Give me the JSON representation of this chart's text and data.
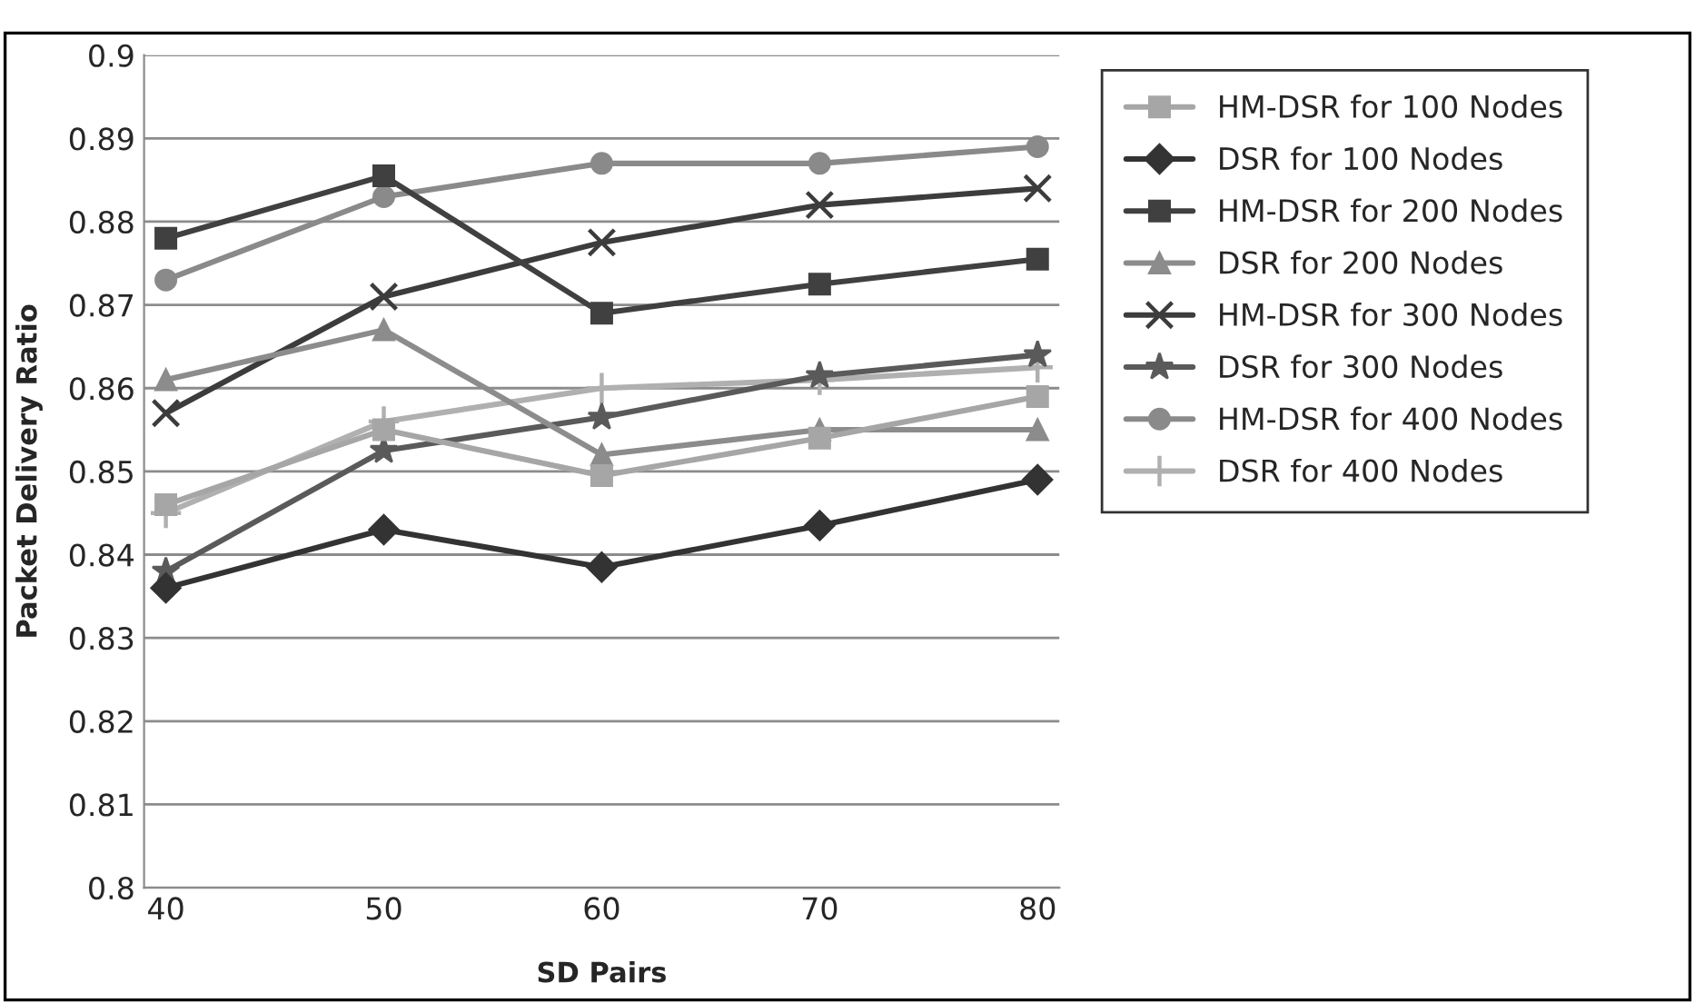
{
  "chart_data": {
    "type": "line",
    "xlabel": "SD Pairs",
    "ylabel": "Packet Delivery Ratio",
    "categories": [
      "40",
      "50",
      "60",
      "70",
      "80"
    ],
    "ylim": [
      0.8,
      0.9
    ],
    "yticks": [
      {
        "value": 0.8,
        "label": "0.8"
      },
      {
        "value": 0.81,
        "label": "0.81"
      },
      {
        "value": 0.82,
        "label": "0.82"
      },
      {
        "value": 0.83,
        "label": "0.83"
      },
      {
        "value": 0.84,
        "label": "0.84"
      },
      {
        "value": 0.85,
        "label": "0.85"
      },
      {
        "value": 0.86,
        "label": "0.86"
      },
      {
        "value": 0.87,
        "label": "0.87"
      },
      {
        "value": 0.88,
        "label": "0.88"
      },
      {
        "value": 0.89,
        "label": "0.89"
      },
      {
        "value": 0.9,
        "label": "0.9"
      }
    ],
    "grid": "y",
    "legend": "right",
    "line_style": "solid",
    "series": [
      {
        "name": "HM-DSR for 100 Nodes",
        "color": "#a6a6a6",
        "marker": "square",
        "values": [
          0.846,
          0.855,
          0.8495,
          0.854,
          0.859
        ]
      },
      {
        "name": "DSR for 100 Nodes",
        "color": "#333333",
        "marker": "diamond",
        "values": [
          0.836,
          0.843,
          0.8385,
          0.8435,
          0.849
        ]
      },
      {
        "name": "HM-DSR for 200 Nodes",
        "color": "#404040",
        "marker": "square",
        "values": [
          0.878,
          0.8855,
          0.869,
          0.8725,
          0.8755
        ]
      },
      {
        "name": "DSR for 200 Nodes",
        "color": "#8c8c8c",
        "marker": "triangle",
        "values": [
          0.861,
          0.867,
          0.852,
          0.855,
          0.855
        ]
      },
      {
        "name": "HM-DSR for 300 Nodes",
        "color": "#3c3c3c",
        "marker": "cross",
        "values": [
          0.857,
          0.871,
          0.8775,
          0.882,
          0.884
        ]
      },
      {
        "name": "DSR for 300 Nodes",
        "color": "#5a5a5a",
        "marker": "star",
        "values": [
          0.838,
          0.8525,
          0.8565,
          0.8615,
          0.864
        ]
      },
      {
        "name": "HM-DSR for 400 Nodes",
        "color": "#8a8a8a",
        "marker": "circle",
        "values": [
          0.873,
          0.883,
          0.887,
          0.887,
          0.889
        ]
      },
      {
        "name": "DSR for 400 Nodes",
        "color": "#b0b0b0",
        "marker": "plus",
        "values": [
          0.845,
          0.856,
          0.86,
          0.861,
          0.8625
        ]
      }
    ]
  }
}
